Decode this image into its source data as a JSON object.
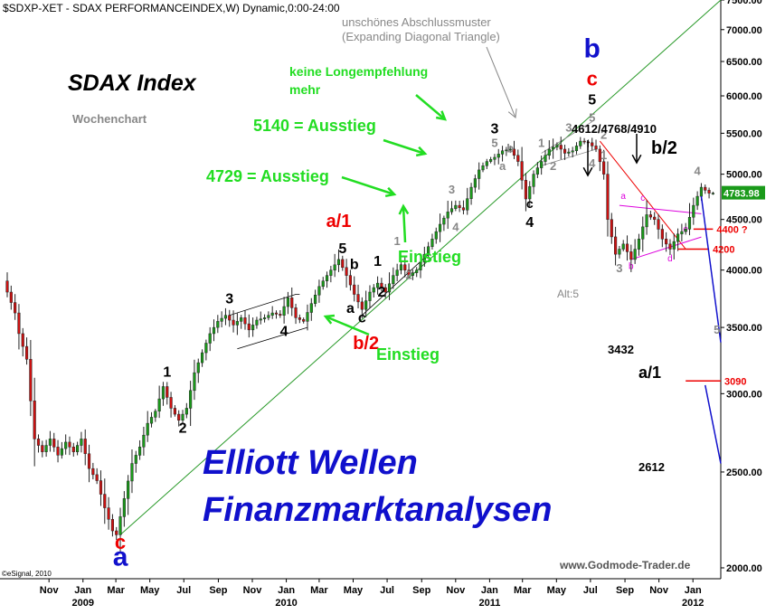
{
  "header": {
    "title": "$SDXP-XET - SDAX PERFORMANCEINDEX,W) Dynamic,0:00-24:00",
    "index_name": "SDAX Index",
    "subtitle": "Wochenchart",
    "copyright": "©eSignal, 2010",
    "website": "www.Godmode-Trader.de",
    "brand_line1": "Elliott Wellen",
    "brand_line2": "Finanzmarktanalysen"
  },
  "colors": {
    "up": "#1a9a1a",
    "down": "#cc1111",
    "green_note": "#22dd22",
    "wave_red": "#ee0000",
    "wave_blue": "#1111cc",
    "trend_green": "#2a9a2a",
    "pattern_magenta": "#dd00dd",
    "price_tag": "#1a9a1a"
  },
  "chart_data": {
    "type": "candlestick",
    "y_scale": "log",
    "ylim": [
      1950,
      7500
    ],
    "y_ticks": [
      2000,
      2500,
      3000,
      3500,
      4000,
      4500,
      5000,
      5500,
      6000,
      6500,
      7000,
      7500
    ],
    "y_tick_labels": [
      "2000.00",
      "2500.00",
      "3000.00",
      "3500.00",
      "4000.00",
      "4500.00",
      "5000.00",
      "5500.00",
      "6000.00",
      "6500.00",
      "7000.00",
      "7500.00"
    ],
    "xlim": [
      "2008-08-18",
      "2012-02-20"
    ],
    "x_month_ticks": [
      {
        "date": "2008-11-01",
        "label": "Nov"
      },
      {
        "date": "2009-01-01",
        "label": "Jan"
      },
      {
        "date": "2009-03-01",
        "label": "Mar"
      },
      {
        "date": "2009-05-01",
        "label": "May"
      },
      {
        "date": "2009-07-01",
        "label": "Jul"
      },
      {
        "date": "2009-09-01",
        "label": "Sep"
      },
      {
        "date": "2009-11-01",
        "label": "Nov"
      },
      {
        "date": "2010-01-01",
        "label": "Jan"
      },
      {
        "date": "2010-03-01",
        "label": "Mar"
      },
      {
        "date": "2010-05-01",
        "label": "May"
      },
      {
        "date": "2010-07-01",
        "label": "Jul"
      },
      {
        "date": "2010-09-01",
        "label": "Sep"
      },
      {
        "date": "2010-11-01",
        "label": "Nov"
      },
      {
        "date": "2011-01-01",
        "label": "Jan"
      },
      {
        "date": "2011-03-01",
        "label": "Mar"
      },
      {
        "date": "2011-05-01",
        "label": "May"
      },
      {
        "date": "2011-07-01",
        "label": "Jul"
      },
      {
        "date": "2011-09-01",
        "label": "Sep"
      },
      {
        "date": "2011-11-01",
        "label": "Nov"
      },
      {
        "date": "2012-01-01",
        "label": "Jan"
      }
    ],
    "x_year_ticks": [
      {
        "date": "2009-01-01",
        "label": "2009"
      },
      {
        "date": "2010-01-01",
        "label": "2010"
      },
      {
        "date": "2011-01-01",
        "label": "2011"
      },
      {
        "date": "2012-01-01",
        "label": "2012"
      }
    ],
    "last_price": 4783.98,
    "last_price_label": "4783.98",
    "price_path": [
      [
        "2008-08-18",
        3900
      ],
      [
        "2008-08-25",
        3800
      ],
      [
        "2008-09-08",
        3620
      ],
      [
        "2008-09-15",
        3450
      ],
      [
        "2008-09-29",
        3250
      ],
      [
        "2008-10-06",
        2950
      ],
      [
        "2008-10-13",
        2700
      ],
      [
        "2008-10-27",
        2620
      ],
      [
        "2008-11-10",
        2700
      ],
      [
        "2008-11-24",
        2600
      ],
      [
        "2008-12-08",
        2680
      ],
      [
        "2008-12-22",
        2620
      ],
      [
        "2009-01-05",
        2700
      ],
      [
        "2009-01-19",
        2520
      ],
      [
        "2009-02-02",
        2450
      ],
      [
        "2009-02-16",
        2300
      ],
      [
        "2009-03-02",
        2180
      ],
      [
        "2009-03-09",
        2160
      ],
      [
        "2009-03-23",
        2350
      ],
      [
        "2009-04-06",
        2550
      ],
      [
        "2009-04-20",
        2650
      ],
      [
        "2009-05-04",
        2800
      ],
      [
        "2009-05-18",
        2880
      ],
      [
        "2009-06-01",
        3050
      ],
      [
        "2009-06-15",
        2900
      ],
      [
        "2009-06-29",
        2820
      ],
      [
        "2009-07-13",
        2900
      ],
      [
        "2009-07-27",
        3150
      ],
      [
        "2009-08-10",
        3300
      ],
      [
        "2009-08-24",
        3450
      ],
      [
        "2009-09-07",
        3550
      ],
      [
        "2009-09-21",
        3600
      ],
      [
        "2009-10-05",
        3520
      ],
      [
        "2009-10-19",
        3580
      ],
      [
        "2009-11-02",
        3480
      ],
      [
        "2009-11-16",
        3560
      ],
      [
        "2009-11-30",
        3580
      ],
      [
        "2009-12-14",
        3620
      ],
      [
        "2009-12-28",
        3600
      ],
      [
        "2010-01-11",
        3750
      ],
      [
        "2010-01-25",
        3580
      ],
      [
        "2010-02-08",
        3550
      ],
      [
        "2010-02-22",
        3700
      ],
      [
        "2010-03-08",
        3850
      ],
      [
        "2010-03-22",
        3950
      ],
      [
        "2010-04-12",
        4100
      ],
      [
        "2010-04-26",
        3950
      ],
      [
        "2010-05-10",
        3780
      ],
      [
        "2010-05-24",
        3650
      ],
      [
        "2010-06-07",
        3800
      ],
      [
        "2010-06-21",
        3880
      ],
      [
        "2010-07-05",
        3800
      ],
      [
        "2010-07-19",
        3950
      ],
      [
        "2010-08-02",
        4050
      ],
      [
        "2010-08-16",
        3950
      ],
      [
        "2010-08-30",
        4000
      ],
      [
        "2010-09-13",
        4150
      ],
      [
        "2010-09-27",
        4300
      ],
      [
        "2010-10-11",
        4450
      ],
      [
        "2010-10-25",
        4580
      ],
      [
        "2010-11-08",
        4650
      ],
      [
        "2010-11-22",
        4600
      ],
      [
        "2010-12-06",
        4850
      ],
      [
        "2010-12-20",
        5050
      ],
      [
        "2011-01-03",
        5150
      ],
      [
        "2011-01-17",
        5200
      ],
      [
        "2011-01-31",
        5280
      ],
      [
        "2011-02-14",
        5300
      ],
      [
        "2011-02-28",
        5150
      ],
      [
        "2011-03-14",
        4720
      ],
      [
        "2011-03-28",
        5000
      ],
      [
        "2011-04-11",
        5150
      ],
      [
        "2011-04-25",
        5300
      ],
      [
        "2011-05-09",
        5350
      ],
      [
        "2011-05-23",
        5250
      ],
      [
        "2011-06-06",
        5280
      ],
      [
        "2011-06-20",
        5400
      ],
      [
        "2011-07-04",
        5380
      ],
      [
        "2011-07-18",
        5300
      ],
      [
        "2011-08-01",
        5000
      ],
      [
        "2011-08-08",
        4500
      ],
      [
        "2011-08-22",
        4150
      ],
      [
        "2011-09-05",
        4250
      ],
      [
        "2011-09-19",
        4100
      ],
      [
        "2011-10-03",
        4300
      ],
      [
        "2011-10-17",
        4550
      ],
      [
        "2011-10-31",
        4500
      ],
      [
        "2011-11-14",
        4300
      ],
      [
        "2011-11-28",
        4200
      ],
      [
        "2011-12-12",
        4350
      ],
      [
        "2011-12-26",
        4400
      ],
      [
        "2012-01-09",
        4650
      ],
      [
        "2012-01-23",
        4850
      ],
      [
        "2012-02-06",
        4784
      ]
    ],
    "trend_lines": [
      {
        "name": "main-uptrend",
        "from": [
          "2009-03-09",
          2160
        ],
        "to": [
          "2012-02-20",
          7500
        ]
      },
      {
        "name": "correction-decline",
        "from": [
          "2011-07-18",
          5400
        ],
        "to": [
          "2011-12-19",
          4200
        ]
      }
    ],
    "forecast_paths": [
      {
        "name": "forecast-a1",
        "points": [
          [
            "2012-01-16",
            4750
          ],
          [
            "2012-02-20",
            3380
          ]
        ]
      },
      {
        "name": "forecast-c",
        "points": [
          [
            "2012-01-23",
            3060
          ],
          [
            "2012-02-20",
            2550
          ]
        ]
      }
    ],
    "level_lines": [
      {
        "value": 4400,
        "label": "4400 ?"
      },
      {
        "value": 4200,
        "label": "4200"
      },
      {
        "value": 3090,
        "label": "3090"
      }
    ],
    "annotations": {
      "pattern_note_1": "unschönes Abschlussmuster",
      "pattern_note_2": "(Expanding Diagonal Triangle)",
      "no_recommend_1": "keine Longempfehlung",
      "no_recommend_2": "mehr",
      "exit_5140": "5140 = Ausstieg",
      "exit_4729": "4729 = Ausstieg",
      "entry_1": "Einstieg",
      "entry_2": "Einstieg",
      "targets": "4612/4768/4910",
      "wave_label": "b/2",
      "alt_count": "Alt:5",
      "target_3432": "3432",
      "target_2612": "2612",
      "wave_a1": "a/1"
    },
    "wave_labels": [
      {
        "t": "c",
        "date": "2009-03-09",
        "value": 2090,
        "color": "red",
        "size": 22
      },
      {
        "t": "a",
        "date": "2009-03-09",
        "value": 2010,
        "color": "blue",
        "size": 30
      },
      {
        "t": "1",
        "date": "2009-06-01",
        "value": 3120,
        "color": "black",
        "size": 16
      },
      {
        "t": "2",
        "date": "2009-06-29",
        "value": 2740,
        "color": "black",
        "size": 16
      },
      {
        "t": "3",
        "date": "2009-09-21",
        "value": 3700,
        "color": "black",
        "size": 16
      },
      {
        "t": "4",
        "date": "2009-12-28",
        "value": 3430,
        "color": "black",
        "size": 16
      },
      {
        "t": "a/1",
        "date": "2010-04-05",
        "value": 4420,
        "color": "red",
        "size": 20
      },
      {
        "t": "5",
        "date": "2010-04-12",
        "value": 4160,
        "color": "black",
        "size": 16
      },
      {
        "t": "b",
        "date": "2010-05-03",
        "value": 4010,
        "color": "black",
        "size": 16
      },
      {
        "t": "a",
        "date": "2010-04-26",
        "value": 3620,
        "color": "black",
        "size": 16
      },
      {
        "t": "c",
        "date": "2010-05-17",
        "value": 3540,
        "color": "black",
        "size": 16
      },
      {
        "t": "b/2",
        "date": "2010-05-24",
        "value": 3330,
        "color": "red",
        "size": 20
      },
      {
        "t": "1",
        "date": "2010-06-14",
        "value": 4040,
        "color": "black",
        "size": 16
      },
      {
        "t": "2",
        "date": "2010-06-21",
        "value": 3760,
        "color": "black",
        "size": 16
      },
      {
        "t": "1",
        "date": "2010-07-19",
        "value": 4240,
        "color": "gray",
        "size": 13
      },
      {
        "t": "2",
        "date": "2010-08-09",
        "value": 3920,
        "color": "gray",
        "size": 13
      },
      {
        "t": "3",
        "date": "2010-10-25",
        "value": 4780,
        "color": "gray",
        "size": 13
      },
      {
        "t": "4",
        "date": "2010-11-01",
        "value": 4380,
        "color": "gray",
        "size": 13
      },
      {
        "t": "3",
        "date": "2011-01-10",
        "value": 5500,
        "color": "black",
        "size": 16
      },
      {
        "t": "5",
        "date": "2011-01-10",
        "value": 5330,
        "color": "gray",
        "size": 13
      },
      {
        "t": "b",
        "date": "2011-02-07",
        "value": 5260,
        "color": "gray",
        "size": 13
      },
      {
        "t": "a",
        "date": "2011-01-24",
        "value": 5050,
        "color": "gray",
        "size": 13
      },
      {
        "t": "c",
        "date": "2011-03-14",
        "value": 4620,
        "color": "black",
        "size": 14
      },
      {
        "t": "4",
        "date": "2011-03-14",
        "value": 4420,
        "color": "black",
        "size": 16
      },
      {
        "t": "1",
        "date": "2011-04-04",
        "value": 5330,
        "color": "gray",
        "size": 13
      },
      {
        "t": "2",
        "date": "2011-04-25",
        "value": 5050,
        "color": "gray",
        "size": 13
      },
      {
        "t": "3",
        "date": "2011-05-23",
        "value": 5520,
        "color": "gray",
        "size": 13
      },
      {
        "t": "b",
        "date": "2011-07-04",
        "value": 6560,
        "color": "blue",
        "size": 30
      },
      {
        "t": "c",
        "date": "2011-07-04",
        "value": 6150,
        "color": "red",
        "size": 22
      },
      {
        "t": "5",
        "date": "2011-07-04",
        "value": 5880,
        "color": "black",
        "size": 16
      },
      {
        "t": "5",
        "date": "2011-07-04",
        "value": 5650,
        "color": "gray",
        "size": 13
      },
      {
        "t": "2",
        "date": "2011-07-25",
        "value": 5430,
        "color": "gray",
        "size": 13
      },
      {
        "t": "4",
        "date": "2011-07-04",
        "value": 5080,
        "color": "gray",
        "size": 13
      },
      {
        "t": "1",
        "date": "2011-07-25",
        "value": 5180,
        "color": "gray",
        "size": 13
      },
      {
        "t": "3",
        "date": "2011-08-22",
        "value": 3980,
        "color": "gray",
        "size": 13
      },
      {
        "t": "4",
        "date": "2012-01-09",
        "value": 4990,
        "color": "gray",
        "size": 13
      },
      {
        "t": "5",
        "date": "2012-02-13",
        "value": 3450,
        "color": "gray",
        "size": 13
      }
    ],
    "pattern_labels": [
      {
        "t": "a",
        "date": "2011-08-29",
        "value": 4720
      },
      {
        "t": "c",
        "date": "2011-10-03",
        "value": 4700
      },
      {
        "t": "b",
        "date": "2011-09-12",
        "value": 4010
      },
      {
        "t": "d",
        "date": "2011-11-21",
        "value": 4080
      },
      {
        "t": "e",
        "date": "2011-12-19",
        "value": 4370
      }
    ]
  }
}
